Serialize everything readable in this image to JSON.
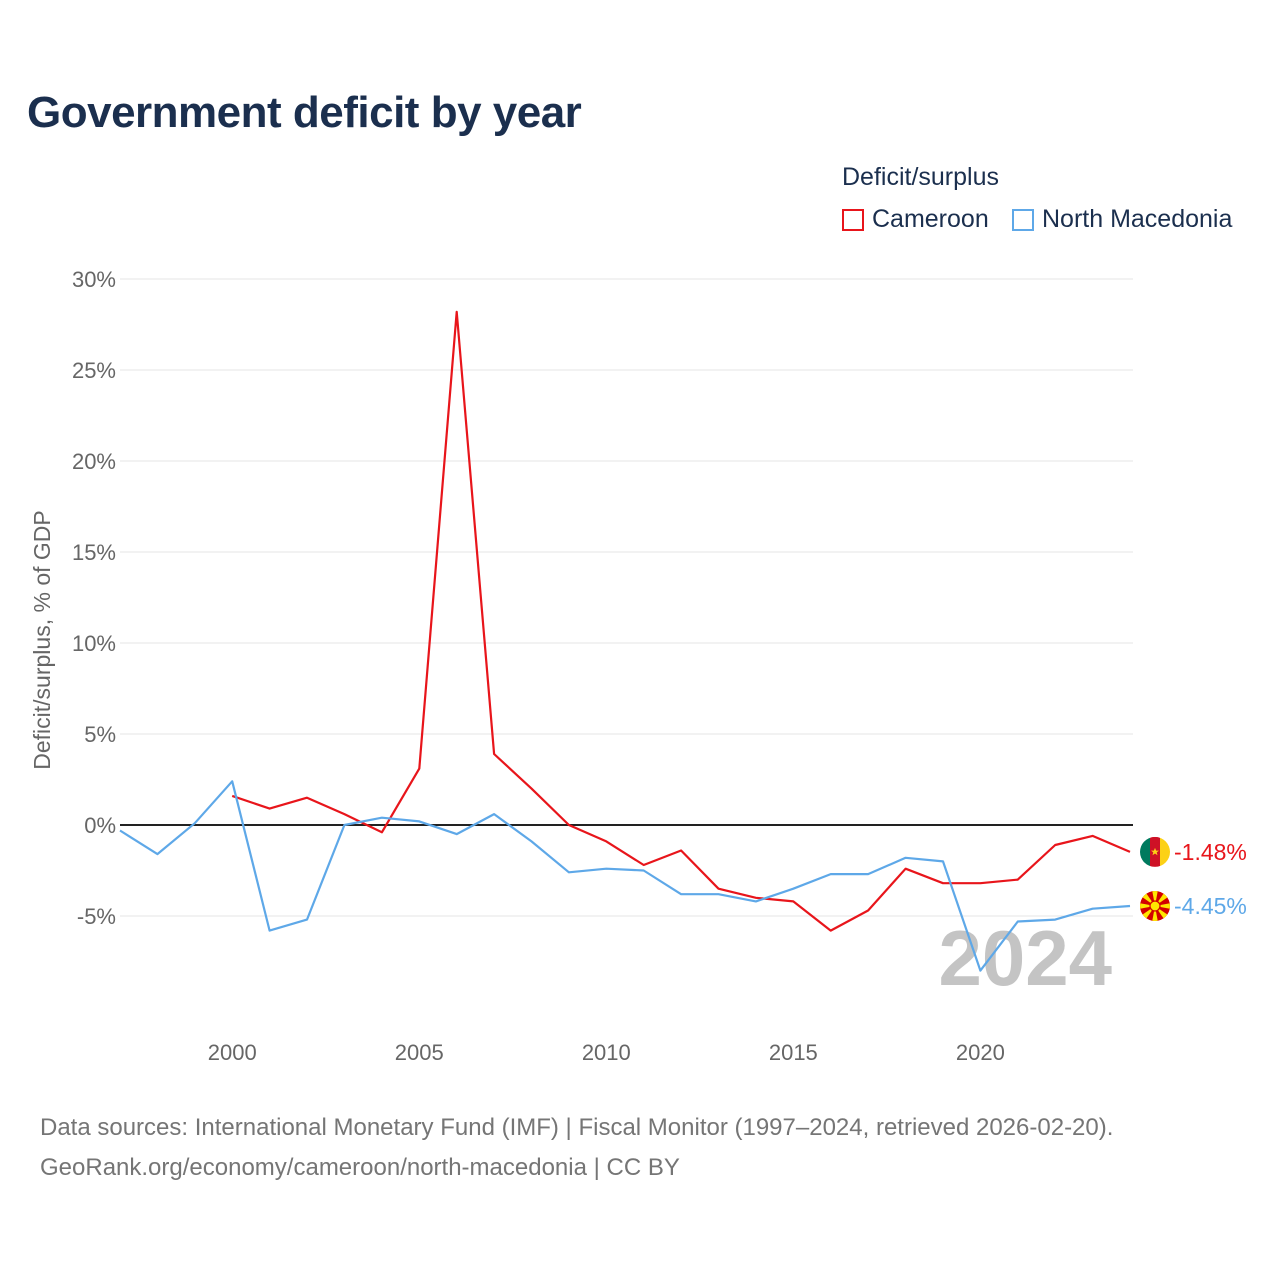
{
  "title": "Government deficit by year",
  "legend": {
    "title": "Deficit/surplus",
    "items": [
      {
        "label": "Cameroon",
        "color": "#e8151b"
      },
      {
        "label": "North Macedonia",
        "color": "#5ea8e8"
      }
    ]
  },
  "source": {
    "line1": "Data sources: International Monetary Fund (IMF) | Fiscal Monitor (1997–2024, retrieved 2026-02-20).",
    "line2": "GeoRank.org/economy/cameroon/north-macedonia | CC BY"
  },
  "chart_data": {
    "type": "line",
    "title": "Government deficit by year",
    "xlabel": "",
    "ylabel": "Deficit/surplus, % of GDP",
    "xlim": [
      1997,
      2024
    ],
    "ylim": [
      -10,
      30
    ],
    "x_ticks": [
      2000,
      2005,
      2010,
      2015,
      2020
    ],
    "y_ticks": [
      30,
      25,
      20,
      15,
      10,
      5,
      0,
      -5
    ],
    "y_tick_labels": [
      "30%",
      "25%",
      "20%",
      "15%",
      "10%",
      "5%",
      "0%",
      "-5%"
    ],
    "watermark_year": "2024",
    "series": [
      {
        "name": "Cameroon",
        "color": "#e8151b",
        "end_label": "-1.48%",
        "flag": "cameroon-flag",
        "x": [
          2000,
          2001,
          2002,
          2003,
          2004,
          2005,
          2006,
          2007,
          2008,
          2009,
          2010,
          2011,
          2012,
          2013,
          2014,
          2015,
          2016,
          2017,
          2018,
          2019,
          2020,
          2021,
          2022,
          2023,
          2024
        ],
        "values": [
          1.6,
          0.9,
          1.5,
          0.6,
          -0.4,
          3.1,
          28.2,
          3.9,
          2.0,
          0.0,
          -0.9,
          -2.2,
          -1.4,
          -3.5,
          -4.0,
          -4.2,
          -5.8,
          -4.7,
          -2.4,
          -3.2,
          -3.2,
          -3.0,
          -1.1,
          -0.6,
          -1.48
        ]
      },
      {
        "name": "North Macedonia",
        "color": "#5ea8e8",
        "end_label": "-4.45%",
        "flag": "north-macedonia-flag",
        "x": [
          1997,
          1998,
          1999,
          2000,
          2001,
          2002,
          2003,
          2004,
          2005,
          2006,
          2007,
          2008,
          2009,
          2010,
          2011,
          2012,
          2013,
          2014,
          2015,
          2016,
          2017,
          2018,
          2019,
          2020,
          2021,
          2022,
          2023,
          2024
        ],
        "values": [
          -0.3,
          -1.6,
          0.1,
          2.4,
          -5.8,
          -5.2,
          0.0,
          0.4,
          0.2,
          -0.5,
          0.6,
          -0.9,
          -2.6,
          -2.4,
          -2.5,
          -3.8,
          -3.8,
          -4.2,
          -3.5,
          -2.7,
          -2.7,
          -1.8,
          -2.0,
          -8.0,
          -5.3,
          -5.2,
          -4.6,
          -4.45
        ]
      }
    ]
  }
}
